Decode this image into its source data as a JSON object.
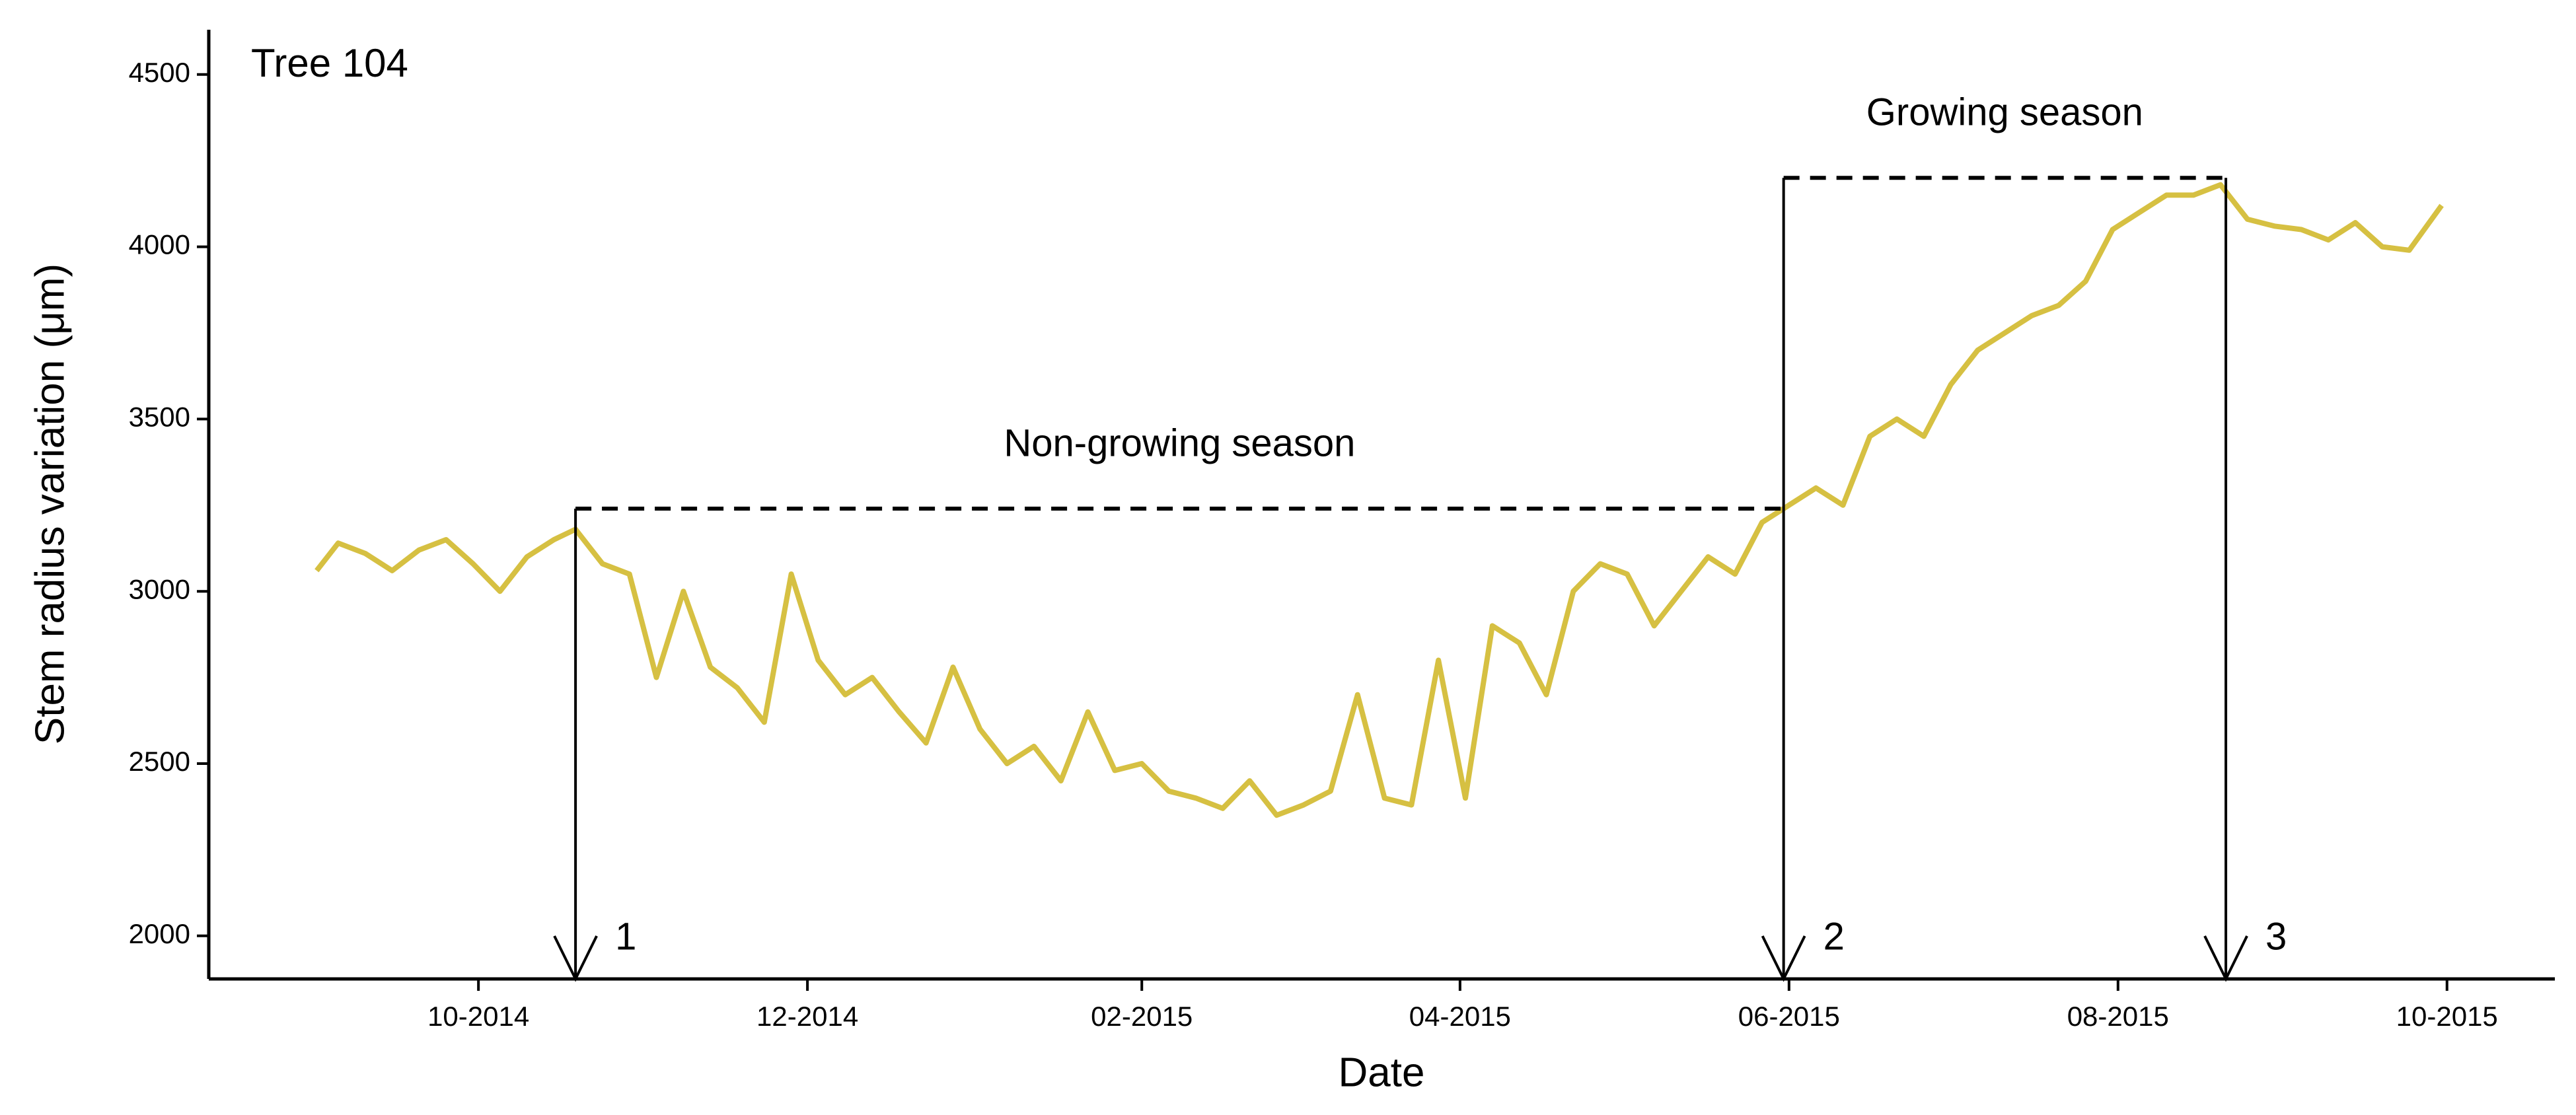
{
  "chart_data": {
    "type": "line",
    "annotation_title": "Tree 104",
    "xlabel": "Date",
    "ylabel": "Stem radius variation (μm)",
    "color": "#d6c042",
    "x": [
      "2014-09-01",
      "2014-09-05",
      "2014-09-10",
      "2014-09-15",
      "2014-09-20",
      "2014-09-25",
      "2014-09-30",
      "2014-10-05",
      "2014-10-10",
      "2014-10-15",
      "2014-10-19",
      "2014-10-24",
      "2014-10-29",
      "2014-11-03",
      "2014-11-08",
      "2014-11-13",
      "2014-11-18",
      "2014-11-23",
      "2014-11-28",
      "2014-12-03",
      "2014-12-08",
      "2014-12-13",
      "2014-12-18",
      "2014-12-23",
      "2014-12-28",
      "2015-01-02",
      "2015-01-07",
      "2015-01-12",
      "2015-01-17",
      "2015-01-22",
      "2015-01-27",
      "2015-02-01",
      "2015-02-06",
      "2015-02-11",
      "2015-02-16",
      "2015-02-21",
      "2015-02-26",
      "2015-03-03",
      "2015-03-08",
      "2015-03-13",
      "2015-03-18",
      "2015-03-23",
      "2015-03-28",
      "2015-04-02",
      "2015-04-07",
      "2015-04-12",
      "2015-04-17",
      "2015-04-22",
      "2015-04-27",
      "2015-05-02",
      "2015-05-07",
      "2015-05-12",
      "2015-05-17",
      "2015-05-22",
      "2015-05-27",
      "2015-06-01",
      "2015-06-06",
      "2015-06-11",
      "2015-06-16",
      "2015-06-21",
      "2015-06-26",
      "2015-07-01",
      "2015-07-06",
      "2015-07-11",
      "2015-07-16",
      "2015-07-21",
      "2015-07-26",
      "2015-07-31",
      "2015-08-05",
      "2015-08-10",
      "2015-08-15",
      "2015-08-20",
      "2015-08-25",
      "2015-08-30",
      "2015-09-04",
      "2015-09-09",
      "2015-09-14",
      "2015-09-19",
      "2015-09-24",
      "2015-09-30"
    ],
    "values": [
      3060,
      3140,
      3110,
      3060,
      3120,
      3150,
      3080,
      3000,
      3100,
      3150,
      3180,
      3080,
      3050,
      2750,
      3000,
      2780,
      2720,
      2620,
      3050,
      2800,
      2700,
      2750,
      2650,
      2560,
      2780,
      2600,
      2500,
      2550,
      2450,
      2650,
      2480,
      2500,
      2420,
      2400,
      2370,
      2450,
      2350,
      2380,
      2420,
      2700,
      2400,
      2380,
      2800,
      2400,
      2900,
      2850,
      2700,
      3000,
      3080,
      3050,
      2900,
      3000,
      3100,
      3050,
      3200,
      3250,
      3300,
      3250,
      3450,
      3500,
      3450,
      3600,
      3700,
      3750,
      3800,
      3830,
      3900,
      4050,
      4100,
      4150,
      4150,
      4180,
      4080,
      4060,
      4050,
      4020,
      4070,
      4000,
      3990,
      4120
    ],
    "xlim": [
      "2014-08-12",
      "2015-10-21"
    ],
    "xticks": [
      {
        "value": "2014-10-01",
        "label": "10-2014"
      },
      {
        "value": "2014-12-01",
        "label": "12-2014"
      },
      {
        "value": "2015-02-01",
        "label": "02-2015"
      },
      {
        "value": "2015-04-01",
        "label": "04-2015"
      },
      {
        "value": "2015-06-01",
        "label": "06-2015"
      },
      {
        "value": "2015-08-01",
        "label": "08-2015"
      },
      {
        "value": "2015-10-01",
        "label": "10-2015"
      }
    ],
    "ylim": [
      1875,
      4630
    ],
    "yticks": [
      2000,
      2500,
      3000,
      3500,
      4000,
      4500
    ],
    "markers": [
      {
        "label": "1",
        "x": "2014-10-19",
        "from": 3240
      },
      {
        "label": "2",
        "x": "2015-05-31",
        "from": 4200
      },
      {
        "label": "3",
        "x": "2015-08-21",
        "from": 4200
      }
    ],
    "levels": [
      {
        "label": "Non-growing season",
        "y": 3240,
        "x": [
          "2014-10-19",
          "2015-05-31"
        ]
      },
      {
        "label": "Growing season",
        "y": 4200,
        "x": [
          "2015-05-31",
          "2015-08-21"
        ]
      }
    ]
  }
}
